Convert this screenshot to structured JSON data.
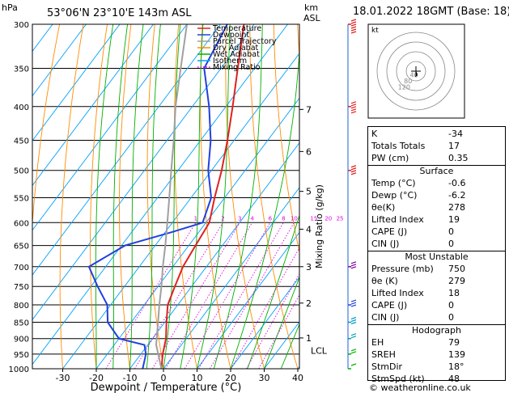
{
  "header": {
    "pressure_unit": "hPa",
    "location": "53°06'N  23°10'E  143m  ASL",
    "height_unit": "km",
    "height_unit2": "ASL",
    "datetime": "18.01.2022  18GMT  (Base: 18)",
    "credit": "© weatheronline.co.uk",
    "xlabel": "Dewpoint / Temperature (°C)",
    "mixing_label": "Mixing Ratio (g/kg)"
  },
  "legend": [
    {
      "label": "Temperature",
      "color": "#e02020",
      "style": "solid"
    },
    {
      "label": "Dewpoint",
      "color": "#2040e0",
      "style": "solid"
    },
    {
      "label": "Parcel Trajectory",
      "color": "#a0a0a0",
      "style": "solid"
    },
    {
      "label": "Dry Adiabat",
      "color": "#ff8c00",
      "style": "solid"
    },
    {
      "label": "Wet Adiabat",
      "color": "#00b000",
      "style": "solid"
    },
    {
      "label": "Isotherm",
      "color": "#00a0ff",
      "style": "solid"
    },
    {
      "label": "Mixing Ratio",
      "color": "#e000e0",
      "style": "dotted"
    }
  ],
  "chart_data": {
    "type": "line",
    "subtype": "skew-T log-p",
    "x_ticks": [
      "-30",
      "-20",
      "-10",
      "0",
      "10",
      "20",
      "30",
      "40"
    ],
    "xlim": [
      -35,
      40
    ],
    "pressure_levels": [
      300,
      350,
      400,
      450,
      500,
      550,
      600,
      650,
      700,
      750,
      800,
      850,
      900,
      950,
      1000
    ],
    "ylim": [
      1000,
      300
    ],
    "km_ticks": [
      {
        "km": "1",
        "p": 898
      },
      {
        "km": "2",
        "p": 795
      },
      {
        "km": "3",
        "p": 700
      },
      {
        "km": "4",
        "p": 614
      },
      {
        "km": "5",
        "p": 538
      },
      {
        "km": "6",
        "p": 468
      },
      {
        "km": "7",
        "p": 404
      }
    ],
    "lcl": {
      "label": "LCL",
      "p": 920
    },
    "mixing_ratio_labels": [
      {
        "label": "1",
        "value": 1
      },
      {
        "label": "2",
        "value": 2
      },
      {
        "label": "3",
        "value": 3
      },
      {
        "label": "4",
        "value": 4
      },
      {
        "label": "6",
        "value": 6
      },
      {
        "label": "8",
        "value": 8
      },
      {
        "label": "10",
        "value": 10
      },
      {
        "label": "15",
        "value": 15
      },
      {
        "label": "20",
        "value": 20
      },
      {
        "label": "25",
        "value": 25
      }
    ],
    "series": [
      {
        "name": "Temperature",
        "color": "#e02020",
        "points": [
          [
            1000,
            -0.6
          ],
          [
            950,
            -3.5
          ],
          [
            900,
            -6.0
          ],
          [
            850,
            -9.5
          ],
          [
            800,
            -13
          ],
          [
            750,
            -15
          ],
          [
            700,
            -17
          ],
          [
            650,
            -18
          ],
          [
            600,
            -19
          ],
          [
            550,
            -23
          ],
          [
            500,
            -27
          ],
          [
            450,
            -32
          ],
          [
            400,
            -38
          ],
          [
            350,
            -45
          ],
          [
            300,
            -53
          ]
        ]
      },
      {
        "name": "Dewpoint",
        "color": "#2040e0",
        "points": [
          [
            1000,
            -6.2
          ],
          [
            950,
            -8.5
          ],
          [
            920,
            -11
          ],
          [
            900,
            -20
          ],
          [
            850,
            -27
          ],
          [
            800,
            -31
          ],
          [
            750,
            -38
          ],
          [
            700,
            -45
          ],
          [
            650,
            -39
          ],
          [
            620,
            -28
          ],
          [
            600,
            -21
          ],
          [
            550,
            -24
          ],
          [
            500,
            -31
          ],
          [
            450,
            -37
          ],
          [
            400,
            -45
          ],
          [
            350,
            -55
          ],
          [
            300,
            -58
          ]
        ]
      },
      {
        "name": "Parcel Trajectory",
        "color": "#a0a0a0",
        "points": [
          [
            1000,
            -0.6
          ],
          [
            920,
            -7.5
          ],
          [
            850,
            -12
          ],
          [
            800,
            -15.5
          ],
          [
            750,
            -19
          ],
          [
            700,
            -23
          ],
          [
            650,
            -27
          ],
          [
            600,
            -31.5
          ],
          [
            550,
            -36.5
          ],
          [
            500,
            -42
          ],
          [
            450,
            -48
          ],
          [
            400,
            -55
          ],
          [
            350,
            -62
          ],
          [
            300,
            -70
          ]
        ]
      }
    ],
    "hodograph": {
      "label": "kt",
      "ring_labels": [
        "40",
        "80",
        "120"
      ],
      "wind_points": [
        [
          0,
          -2
        ],
        [
          0.5,
          -6
        ],
        [
          1,
          -10
        ],
        [
          1,
          -18
        ],
        [
          -1,
          -22
        ]
      ]
    },
    "wind_barbs": [
      {
        "p": 300,
        "dir": 250,
        "spd": 55,
        "color": "#e02020"
      },
      {
        "p": 400,
        "dir": 255,
        "spd": 45,
        "color": "#e02020"
      },
      {
        "p": 500,
        "dir": 255,
        "spd": 40,
        "color": "#e02020"
      },
      {
        "p": 700,
        "dir": 250,
        "spd": 30,
        "color": "#8000a0"
      },
      {
        "p": 800,
        "dir": 240,
        "spd": 25,
        "color": "#2040e0"
      },
      {
        "p": 850,
        "dir": 230,
        "spd": 25,
        "color": "#00a0c0"
      },
      {
        "p": 900,
        "dir": 220,
        "spd": 20,
        "color": "#00a0c0"
      },
      {
        "p": 950,
        "dir": 200,
        "spd": 15,
        "color": "#00b000"
      },
      {
        "p": 1000,
        "dir": 190,
        "spd": 10,
        "color": "#00b000"
      }
    ]
  },
  "indices": {
    "top": [
      {
        "label": "K",
        "value": "-34"
      },
      {
        "label": "Totals Totals",
        "value": "17"
      },
      {
        "label": "PW (cm)",
        "value": "0.35"
      }
    ],
    "surface_title": "Surface",
    "surface": [
      {
        "label": "Temp (°C)",
        "value": "-0.6"
      },
      {
        "label": "Dewp (°C)",
        "value": "-6.2"
      },
      {
        "label": "θe(K)",
        "value": "278"
      },
      {
        "label": "Lifted Index",
        "value": "19"
      },
      {
        "label": "CAPE (J)",
        "value": "0"
      },
      {
        "label": "CIN (J)",
        "value": "0"
      }
    ],
    "unstable_title": "Most Unstable",
    "unstable": [
      {
        "label": "Pressure (mb)",
        "value": "750"
      },
      {
        "label": "θe (K)",
        "value": "279"
      },
      {
        "label": "Lifted Index",
        "value": "18"
      },
      {
        "label": "CAPE (J)",
        "value": "0"
      },
      {
        "label": "CIN (J)",
        "value": "0"
      }
    ],
    "hodograph_title": "Hodograph",
    "hodo": [
      {
        "label": "EH",
        "value": "79"
      },
      {
        "label": "SREH",
        "value": "139"
      },
      {
        "label": "StmDir",
        "value": "18°"
      },
      {
        "label": "StmSpd (kt)",
        "value": "48"
      }
    ]
  }
}
